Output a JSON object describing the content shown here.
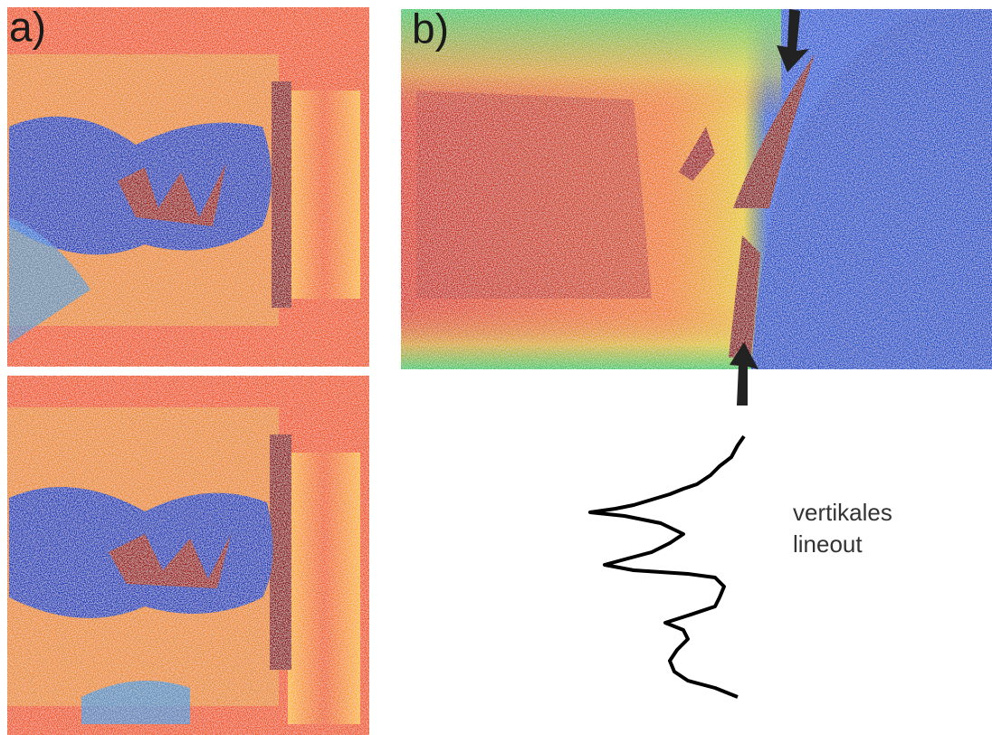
{
  "panels": [
    {
      "label": "a)"
    },
    {
      "label": "b)"
    }
  ],
  "annotation": {
    "lines": [
      "vertikales",
      "lineout"
    ]
  }
}
